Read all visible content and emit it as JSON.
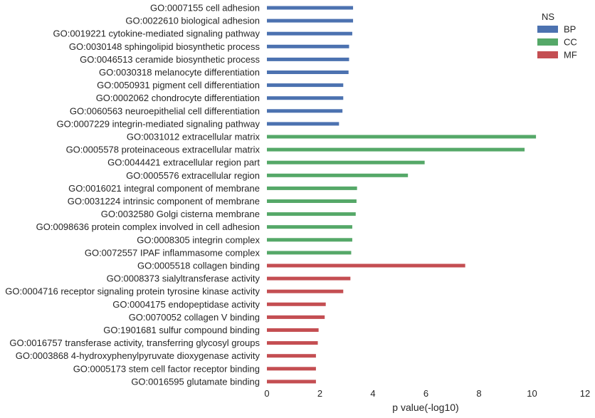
{
  "chart_data": {
    "type": "bar",
    "orientation": "horizontal",
    "categories": [
      "GO:0007155 cell adhesion",
      "GO:0022610 biological adhesion",
      "GO:0019221 cytokine-mediated signaling pathway",
      "GO:0030148 sphingolipid biosynthetic process",
      "GO:0046513 ceramide biosynthetic process",
      "GO:0030318 melanocyte differentiation",
      "GO:0050931 pigment cell differentiation",
      "GO:0002062 chondrocyte differentiation",
      "GO:0060563 neuroepithelial cell differentiation",
      "GO:0007229 integrin-mediated signaling pathway",
      "GO:0031012 extracellular matrix",
      "GO:0005578 proteinaceous extracellular matrix",
      "GO:0044421 extracellular region part",
      "GO:0005576 extracellular region",
      "GO:0016021 integral component of membrane",
      "GO:0031224 intrinsic component of membrane",
      "GO:0032580 Golgi cisterna membrane",
      "GO:0098636 protein complex involved in cell adhesion",
      "GO:0008305 integrin complex",
      "GO:0072557 IPAF inflammasome complex",
      "GO:0005518 collagen binding",
      "GO:0008373 sialyltransferase activity",
      "GO:0004716 receptor signaling protein tyrosine kinase activity",
      "GO:0004175 endopeptidase activity",
      "GO:0070052 collagen V binding",
      "GO:1901681 sulfur compound binding",
      "GO:0016757 transferase activity, transferring glycosyl groups",
      "GO:0003868 4-hydroxyphenylpyruvate dioxygenase activity",
      "GO:0005173 stem cell factor receptor binding",
      "GO:0016595 glutamate binding"
    ],
    "values": [
      3.25,
      3.25,
      3.22,
      3.1,
      3.1,
      3.08,
      2.88,
      2.88,
      2.85,
      2.72,
      10.15,
      9.72,
      5.95,
      5.32,
      3.4,
      3.38,
      3.35,
      3.22,
      3.22,
      3.18,
      7.48,
      3.15,
      2.88,
      2.22,
      2.18,
      1.95,
      1.92,
      1.85,
      1.85,
      1.85
    ],
    "groups": [
      "BP",
      "BP",
      "BP",
      "BP",
      "BP",
      "BP",
      "BP",
      "BP",
      "BP",
      "BP",
      "CC",
      "CC",
      "CC",
      "CC",
      "CC",
      "CC",
      "CC",
      "CC",
      "CC",
      "CC",
      "MF",
      "MF",
      "MF",
      "MF",
      "MF",
      "MF",
      "MF",
      "MF",
      "MF",
      "MF"
    ],
    "xlabel": "p value(-log10)",
    "xlim": [
      0,
      12
    ],
    "xticks": [
      0,
      2,
      4,
      6,
      8,
      10,
      12
    ],
    "grid": false,
    "legend": {
      "title": "NS",
      "placement": "top-right",
      "entries": [
        {
          "name": "BP",
          "color": "#4c72b0"
        },
        {
          "name": "CC",
          "color": "#55a868"
        },
        {
          "name": "MF",
          "color": "#c44e52"
        }
      ]
    }
  }
}
